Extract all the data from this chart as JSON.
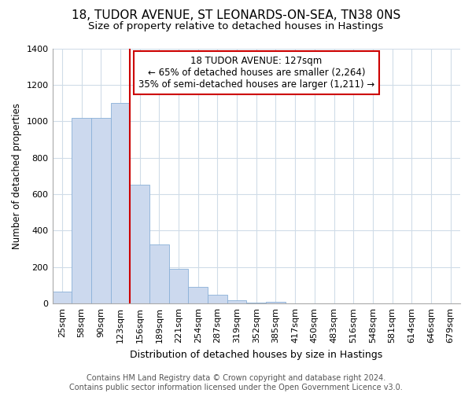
{
  "title1": "18, TUDOR AVENUE, ST LEONARDS-ON-SEA, TN38 0NS",
  "title2": "Size of property relative to detached houses in Hastings",
  "xlabel": "Distribution of detached houses by size in Hastings",
  "ylabel": "Number of detached properties",
  "bin_labels": [
    "25sqm",
    "58sqm",
    "90sqm",
    "123sqm",
    "156sqm",
    "189sqm",
    "221sqm",
    "254sqm",
    "287sqm",
    "319sqm",
    "352sqm",
    "385sqm",
    "417sqm",
    "450sqm",
    "483sqm",
    "516sqm",
    "548sqm",
    "581sqm",
    "614sqm",
    "646sqm",
    "679sqm"
  ],
  "bar_values": [
    65,
    1020,
    1020,
    1100,
    650,
    325,
    190,
    90,
    50,
    20,
    5,
    10,
    0,
    0,
    0,
    0,
    0,
    0,
    0,
    0,
    0
  ],
  "bar_color": "#ccd9ee",
  "bar_edge_color": "#8ab0d8",
  "vline_x": 3.5,
  "vline_color": "#cc0000",
  "annotation_text_lines": [
    "18 TUDOR AVENUE: 127sqm",
    "← 65% of detached houses are smaller (2,264)",
    "35% of semi-detached houses are larger (1,211) →"
  ],
  "annotation_box_facecolor": "#ffffff",
  "annotation_box_edgecolor": "#cc0000",
  "ylim": [
    0,
    1400
  ],
  "yticks": [
    0,
    200,
    400,
    600,
    800,
    1000,
    1200,
    1400
  ],
  "background_color": "#ffffff",
  "plot_bg_color": "#ffffff",
  "grid_color": "#d0dce8",
  "title1_fontsize": 11,
  "title2_fontsize": 9.5,
  "xlabel_fontsize": 9,
  "ylabel_fontsize": 8.5,
  "tick_fontsize": 8,
  "annotation_fontsize": 8.5,
  "footer_fontsize": 7,
  "footer_text": "Contains HM Land Registry data © Crown copyright and database right 2024.\nContains public sector information licensed under the Open Government Licence v3.0."
}
